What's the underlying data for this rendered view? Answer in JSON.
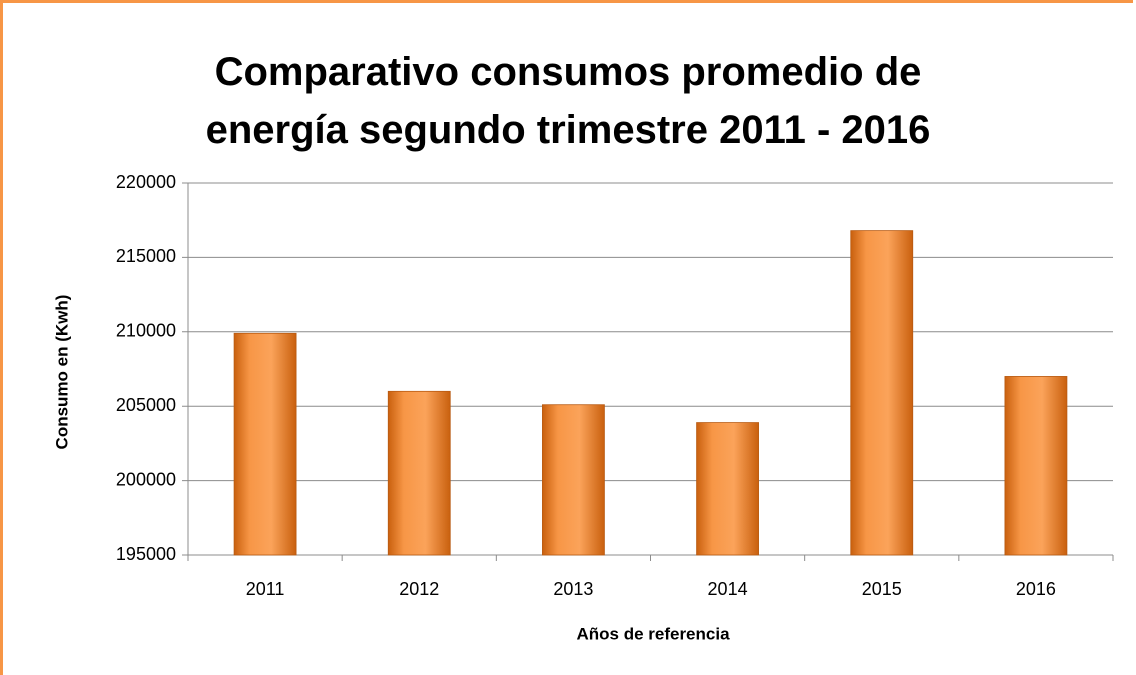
{
  "chart_data": {
    "type": "bar",
    "title": "Comparativo consumos promedio de energía segundo trimestre 2011 - 2016",
    "y_label": "Consumo en (Kwh)",
    "x_label": "Años de referencia",
    "categories": [
      "2011",
      "2012",
      "2013",
      "2014",
      "2015",
      "2016"
    ],
    "values": [
      209900,
      206000,
      205100,
      203900,
      216800,
      207000
    ],
    "color": "#f79646",
    "ylim": [
      195000,
      220000
    ],
    "yticks": [
      195000,
      200000,
      205000,
      210000,
      215000,
      220000
    ],
    "grid": true
  }
}
